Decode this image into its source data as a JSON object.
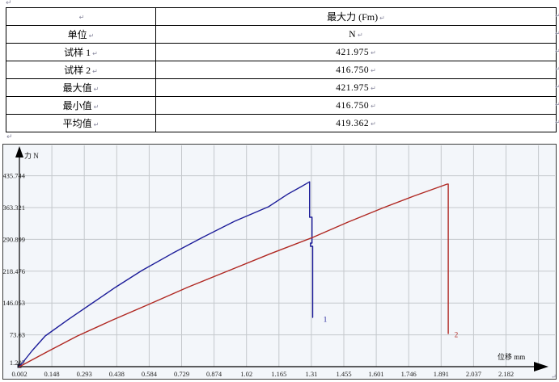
{
  "marks": {
    "pilcrow": "↵"
  },
  "table": {
    "header": {
      "col1": "",
      "col2": "最大力 (Fm)"
    },
    "rows": [
      {
        "label": "单位",
        "value": "N"
      },
      {
        "label": "试样 1",
        "value": "421.975"
      },
      {
        "label": "试样 2",
        "value": "416.750"
      },
      {
        "label": "最大值",
        "value": "421.975"
      },
      {
        "label": "最小值",
        "value": "416.750"
      },
      {
        "label": "平均值",
        "value": "419.362"
      }
    ]
  },
  "chart_data": {
    "type": "line",
    "title": "",
    "xlabel": "位移 mm",
    "ylabel": "力 N",
    "grid": true,
    "legend_position": "inline-end-labels",
    "xlim": [
      0.002,
      2.328
    ],
    "ylim": [
      1.207,
      487
    ],
    "x_ticks": [
      0.002,
      0.148,
      0.293,
      0.438,
      0.584,
      0.729,
      0.874,
      1.02,
      1.165,
      1.31,
      1.455,
      1.601,
      1.746,
      1.891,
      2.037,
      2.182
    ],
    "x_tick_labels": [
      "0.002",
      "0.148",
      "0.293",
      "0.438",
      "0.584",
      "0.729",
      "0.874",
      "1.02",
      "1.165",
      "1.31",
      "1.455",
      "1.601",
      "1.746",
      "1.891",
      "2.037",
      "2.182"
    ],
    "y_ticks": [
      1.207,
      73.63,
      146.053,
      218.476,
      290.899,
      363.321,
      435.744
    ],
    "y_tick_labels": [
      "1.207",
      "73.63",
      "146.053",
      "218.476",
      "290.899",
      "363.321",
      "435.744"
    ],
    "series": [
      {
        "name": "1",
        "color": "#1c1c99",
        "label_pos": [
          1.37,
          103
        ],
        "points": [
          [
            0.002,
            1.2
          ],
          [
            0.06,
            38
          ],
          [
            0.118,
            71.1
          ],
          [
            0.22,
            108
          ],
          [
            0.321,
            142.7
          ],
          [
            0.435,
            182
          ],
          [
            0.553,
            219.9
          ],
          [
            0.69,
            259
          ],
          [
            0.826,
            295.3
          ],
          [
            0.97,
            332
          ],
          [
            1.123,
            365.2
          ],
          [
            1.21,
            394
          ],
          [
            1.27,
            411
          ],
          [
            1.308,
            421.975
          ],
          [
            1.308,
            341.2
          ],
          [
            1.319,
            341.2
          ],
          [
            1.319,
            282.4
          ],
          [
            1.312,
            282.4
          ],
          [
            1.312,
            275.0
          ],
          [
            1.322,
            275.0
          ],
          [
            1.322,
            113.3
          ]
        ]
      },
      {
        "name": "2",
        "color": "#b02822",
        "label_pos": [
          1.96,
          68
        ],
        "points": [
          [
            0.002,
            1.2
          ],
          [
            0.13,
            36
          ],
          [
            0.263,
            71.1
          ],
          [
            0.42,
            107
          ],
          [
            0.583,
            142.7
          ],
          [
            0.76,
            182
          ],
          [
            0.945,
            219.9
          ],
          [
            1.13,
            258
          ],
          [
            1.322,
            295.3
          ],
          [
            1.48,
            330
          ],
          [
            1.642,
            363.3
          ],
          [
            1.78,
            390
          ],
          [
            1.928,
            416.75
          ],
          [
            1.932,
            416.75
          ],
          [
            1.932,
            76.5
          ]
        ]
      }
    ],
    "colors": {
      "plot_bg": "#f3f6fa",
      "grid": "#c4c8cc",
      "axis": "#000000",
      "tick_text": "#222222",
      "border": "#3c3c3c"
    }
  }
}
